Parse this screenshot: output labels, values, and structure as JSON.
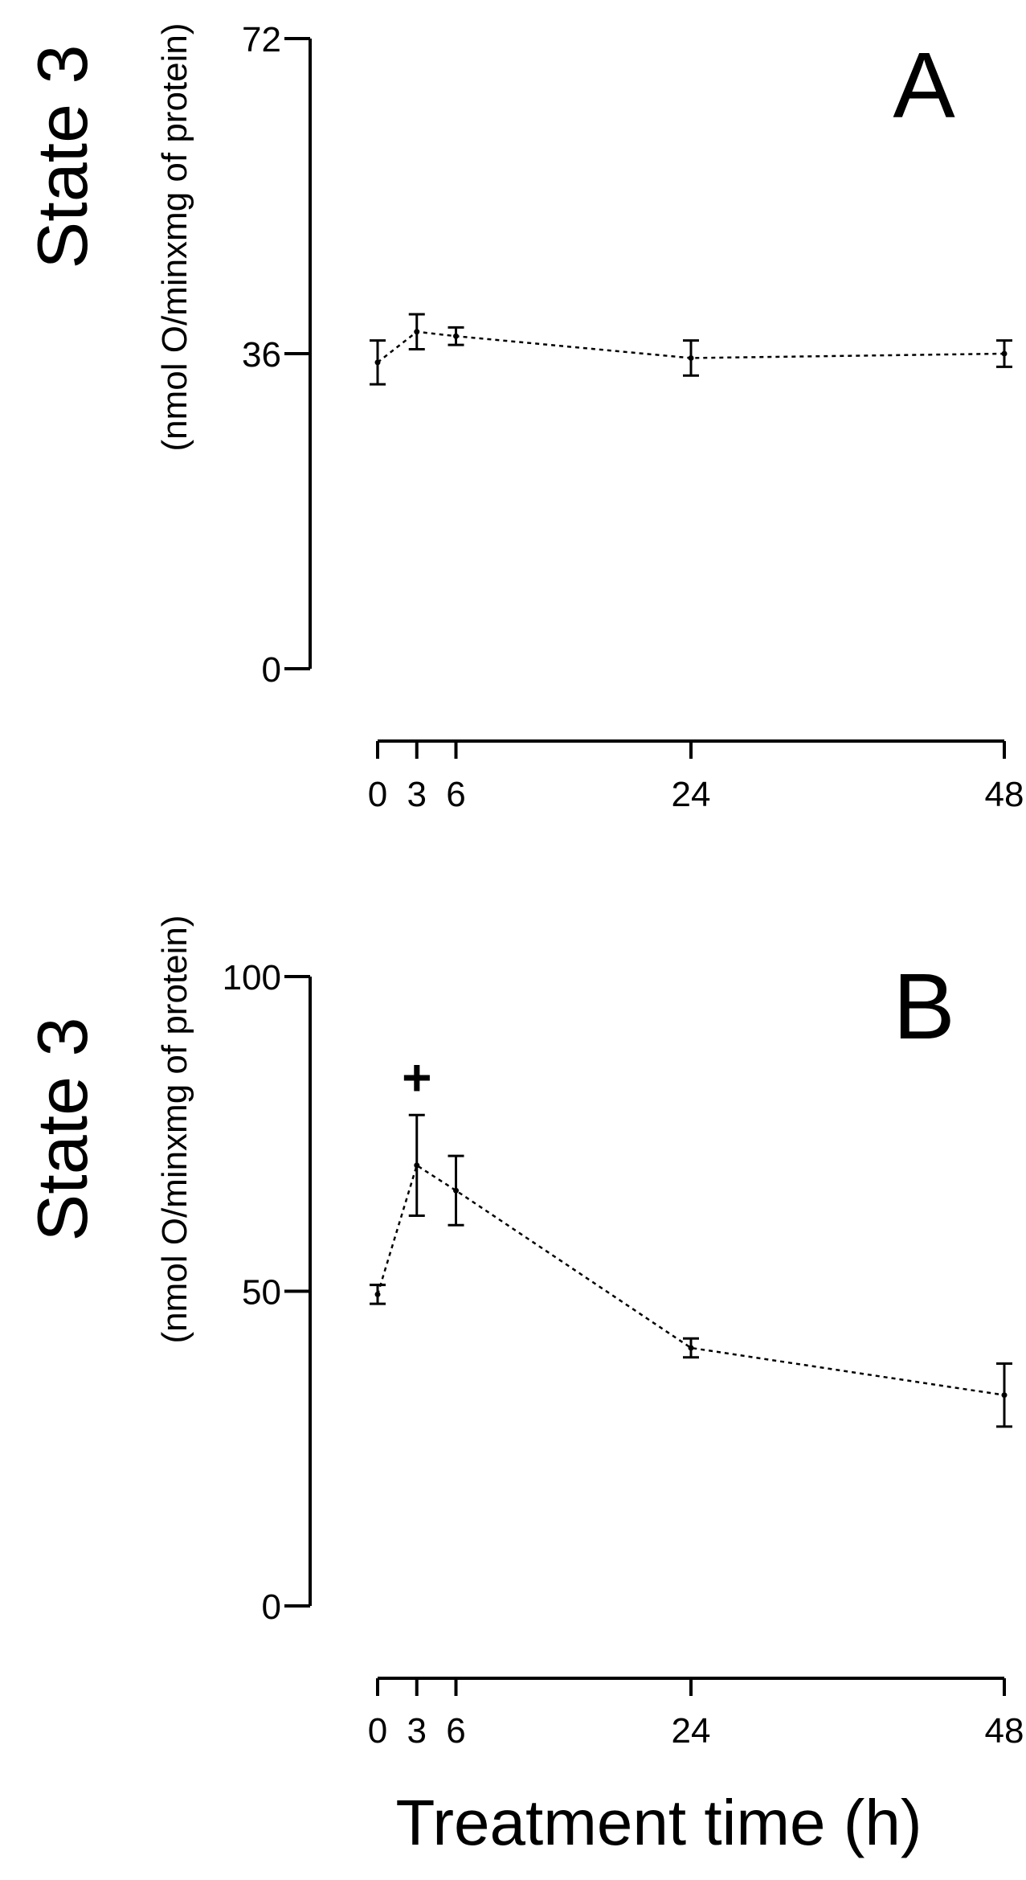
{
  "chart_data": [
    {
      "type": "line",
      "panel_label": "A",
      "ylabel": "State 3",
      "ylabel_units": "(nmol O/minxmg of protein)",
      "xlabel": "",
      "x_ticks": [
        "0",
        "3",
        "6",
        "24",
        "48"
      ],
      "y_ticks": [
        "0",
        "36",
        "72"
      ],
      "ylim": [
        0,
        72
      ],
      "xlim": [
        0,
        48
      ],
      "line_style": "dotted",
      "series": [
        {
          "x": [
            0,
            3,
            6,
            24,
            48
          ],
          "y": [
            35,
            38.5,
            38,
            35.5,
            36
          ],
          "error": [
            2.5,
            2.0,
            1.0,
            2.0,
            1.5
          ]
        }
      ],
      "annotations": []
    },
    {
      "type": "line",
      "panel_label": "B",
      "ylabel": "State 3",
      "ylabel_units": "(nmol O/minxmg of protein)",
      "xlabel": "Treatment time (h)",
      "x_ticks": [
        "0",
        "3",
        "6",
        "24",
        "48"
      ],
      "y_ticks": [
        "0",
        "50",
        "100"
      ],
      "ylim": [
        0,
        100
      ],
      "xlim": [
        0,
        48
      ],
      "line_style": "dotted",
      "series": [
        {
          "x": [
            0,
            3,
            6,
            24,
            48
          ],
          "y": [
            49.5,
            70,
            66,
            41,
            33.5
          ],
          "error": [
            1.5,
            8.0,
            5.5,
            1.5,
            5.0
          ]
        }
      ],
      "annotations": [
        {
          "text": "+",
          "x": 3,
          "y": 84
        }
      ]
    }
  ]
}
